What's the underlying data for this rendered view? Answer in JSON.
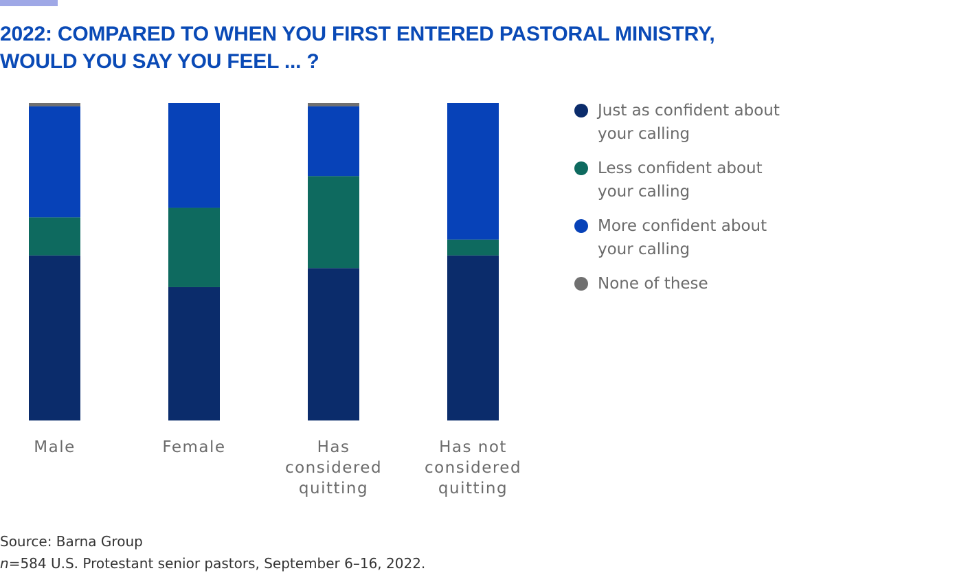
{
  "title": {
    "line1": "2022: COMPARED TO WHEN YOU FIRST ENTERED PASTORAL MINISTRY,",
    "line2": "WOULD YOU SAY YOU FEEL ... ?"
  },
  "colors": {
    "accent": "#9fa8e6",
    "title": "#0a4ab6",
    "just_as_confident": "#0b2c6b",
    "less_confident": "#0e6a5f",
    "more_confident": "#0742b8",
    "none": "#707070"
  },
  "legend": [
    {
      "label": "Just as confident about your calling",
      "color": "#0b2c6b"
    },
    {
      "label": "Less confident about your calling",
      "color": "#0e6a5f"
    },
    {
      "label": "More confident about your calling",
      "color": "#0742b8"
    },
    {
      "label": "None of these",
      "color": "#707070"
    }
  ],
  "chart_data": {
    "type": "bar",
    "stacked": true,
    "percent_symbol": "%",
    "categories": [
      "Male",
      "Female",
      "Has considered quitting",
      "Has not considered quitting"
    ],
    "category_lines": [
      [
        "Male"
      ],
      [
        "Female"
      ],
      [
        "Has",
        "considered",
        "quitting"
      ],
      [
        "Has not",
        "considered",
        "quitting"
      ]
    ],
    "series": [
      {
        "name": "Just as confident about your calling",
        "values": [
          52,
          42,
          48,
          52
        ],
        "color": "#0b2c6b"
      },
      {
        "name": "Less confident about your calling",
        "values": [
          12,
          25,
          29,
          5
        ],
        "color": "#0e6a5f"
      },
      {
        "name": "More confident about your calling",
        "values": [
          35,
          33,
          22,
          43
        ],
        "color": "#0742b8"
      },
      {
        "name": "None of these",
        "values": [
          1,
          0,
          1,
          0
        ],
        "color": "#707070"
      }
    ],
    "ylim": [
      0,
      100
    ]
  },
  "source": {
    "line1": "Source: Barna Group",
    "n_label": "n",
    "line2": "=584 U.S. Protestant senior pastors, September 6–16, 2022."
  }
}
